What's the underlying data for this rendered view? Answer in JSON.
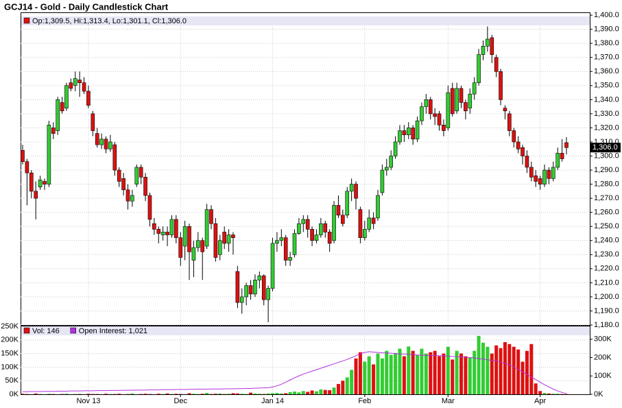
{
  "chart_data": [
    {
      "type": "candlestick",
      "title": "GCJ14 - Gold - Daily Candlestick Chart",
      "legend_label": "Op:1,309.5, Hi:1,313.4, Lo:1,301.1, Cl:1,306.0",
      "ylim": [
        1180,
        1402
      ],
      "yticks": [
        {
          "value": 1180,
          "label": "1,180.0"
        },
        {
          "value": 1190,
          "label": "1,190.0"
        },
        {
          "value": 1200,
          "label": "1,200.0"
        },
        {
          "value": 1210,
          "label": "1,210.0"
        },
        {
          "value": 1220,
          "label": "1,220.0"
        },
        {
          "value": 1230,
          "label": "1,230.0"
        },
        {
          "value": 1240,
          "label": "1,240.0"
        },
        {
          "value": 1250,
          "label": "1,250.0"
        },
        {
          "value": 1260,
          "label": "1,260.0"
        },
        {
          "value": 1270,
          "label": "1,270.0"
        },
        {
          "value": 1280,
          "label": "1,280.0"
        },
        {
          "value": 1290,
          "label": "1,290.0"
        },
        {
          "value": 1300,
          "label": "1,300.0"
        },
        {
          "value": 1310,
          "label": "1,310.0"
        },
        {
          "value": 1320,
          "label": "1,320.0"
        },
        {
          "value": 1330,
          "label": "1,330.0"
        },
        {
          "value": 1340,
          "label": "1,340.0"
        },
        {
          "value": 1350,
          "label": "1,350.0"
        },
        {
          "value": 1360,
          "label": "1,360.0"
        },
        {
          "value": 1370,
          "label": "1,370.0"
        },
        {
          "value": 1380,
          "label": "1,380.0"
        },
        {
          "value": 1390,
          "label": "1,390.0"
        },
        {
          "value": 1400,
          "label": "1,400.0"
        }
      ],
      "grid": true,
      "up_color": "#33cc33",
      "down_color": "#dd1111",
      "last_price": {
        "value": 1306.0,
        "label": "1,306.0"
      },
      "candles": [
        [
          1304,
          1308,
          1294,
          1296
        ],
        [
          1296,
          1298,
          1265,
          1288
        ],
        [
          1288,
          1290,
          1270,
          1275
        ],
        [
          1275,
          1282,
          1255,
          1270
        ],
        [
          1278,
          1286,
          1276,
          1283
        ],
        [
          1282,
          1284,
          1276,
          1280
        ],
        [
          1280,
          1325,
          1278,
          1322
        ],
        [
          1320,
          1324,
          1312,
          1316
        ],
        [
          1318,
          1342,
          1315,
          1340
        ],
        [
          1338,
          1342,
          1330,
          1332
        ],
        [
          1334,
          1352,
          1332,
          1350
        ],
        [
          1352,
          1355,
          1346,
          1348
        ],
        [
          1350,
          1360,
          1346,
          1355
        ],
        [
          1354,
          1360,
          1342,
          1352
        ],
        [
          1352,
          1356,
          1344,
          1346
        ],
        [
          1346,
          1350,
          1334,
          1336
        ],
        [
          1330,
          1332,
          1314,
          1318
        ],
        [
          1316,
          1320,
          1306,
          1308
        ],
        [
          1308,
          1316,
          1305,
          1312
        ],
        [
          1312,
          1314,
          1302,
          1305
        ],
        [
          1305,
          1315,
          1303,
          1310
        ],
        [
          1308,
          1310,
          1286,
          1290
        ],
        [
          1290,
          1292,
          1278,
          1282
        ],
        [
          1284,
          1288,
          1272,
          1276
        ],
        [
          1276,
          1280,
          1262,
          1268
        ],
        [
          1268,
          1276,
          1264,
          1272
        ],
        [
          1280,
          1294,
          1278,
          1292
        ],
        [
          1292,
          1294,
          1280,
          1285
        ],
        [
          1285,
          1288,
          1268,
          1272
        ],
        [
          1272,
          1274,
          1250,
          1255
        ],
        [
          1252,
          1256,
          1244,
          1248
        ],
        [
          1248,
          1250,
          1238,
          1245
        ],
        [
          1244,
          1250,
          1240,
          1246
        ],
        [
          1246,
          1250,
          1236,
          1244
        ],
        [
          1244,
          1258,
          1242,
          1255
        ],
        [
          1255,
          1258,
          1238,
          1242
        ],
        [
          1242,
          1246,
          1222,
          1228
        ],
        [
          1236,
          1254,
          1226,
          1250
        ],
        [
          1250,
          1252,
          1212,
          1232
        ],
        [
          1226,
          1240,
          1214,
          1235
        ],
        [
          1235,
          1246,
          1232,
          1240
        ],
        [
          1240,
          1242,
          1212,
          1232
        ],
        [
          1236,
          1266,
          1234,
          1262
        ],
        [
          1262,
          1265,
          1248,
          1252
        ],
        [
          1252,
          1256,
          1225,
          1228
        ],
        [
          1230,
          1244,
          1226,
          1240
        ],
        [
          1246,
          1250,
          1234,
          1238
        ],
        [
          1238,
          1248,
          1232,
          1244
        ],
        [
          1244,
          1246,
          1230,
          1242
        ],
        [
          1218,
          1222,
          1192,
          1196
        ],
        [
          1196,
          1206,
          1188,
          1200
        ],
        [
          1200,
          1210,
          1194,
          1208
        ],
        [
          1208,
          1212,
          1198,
          1202
        ],
        [
          1202,
          1216,
          1200,
          1212
        ],
        [
          1212,
          1218,
          1206,
          1215
        ],
        [
          1215,
          1216,
          1194,
          1198
        ],
        [
          1198,
          1208,
          1182,
          1206
        ],
        [
          1206,
          1242,
          1204,
          1238
        ],
        [
          1238,
          1246,
          1232,
          1240
        ],
        [
          1240,
          1248,
          1236,
          1242
        ],
        [
          1242,
          1244,
          1222,
          1226
        ],
        [
          1226,
          1232,
          1222,
          1228
        ],
        [
          1230,
          1248,
          1228,
          1245
        ],
        [
          1245,
          1256,
          1244,
          1252
        ],
        [
          1252,
          1258,
          1246,
          1255
        ],
        [
          1255,
          1258,
          1242,
          1248
        ],
        [
          1248,
          1250,
          1236,
          1240
        ],
        [
          1240,
          1248,
          1238,
          1244
        ],
        [
          1244,
          1256,
          1242,
          1252
        ],
        [
          1252,
          1254,
          1242,
          1246
        ],
        [
          1246,
          1248,
          1232,
          1238
        ],
        [
          1240,
          1268,
          1238,
          1265
        ],
        [
          1265,
          1272,
          1256,
          1258
        ],
        [
          1258,
          1262,
          1250,
          1252
        ],
        [
          1258,
          1278,
          1256,
          1275
        ],
        [
          1275,
          1284,
          1268,
          1280
        ],
        [
          1280,
          1282,
          1262,
          1270
        ],
        [
          1262,
          1264,
          1238,
          1242
        ],
        [
          1242,
          1254,
          1240,
          1248
        ],
        [
          1248,
          1262,
          1246,
          1256
        ],
        [
          1256,
          1260,
          1248,
          1252
        ],
        [
          1256,
          1276,
          1254,
          1272
        ],
        [
          1274,
          1294,
          1272,
          1290
        ],
        [
          1290,
          1298,
          1286,
          1292
        ],
        [
          1292,
          1304,
          1290,
          1300
        ],
        [
          1300,
          1314,
          1298,
          1310
        ],
        [
          1310,
          1322,
          1308,
          1318
        ],
        [
          1318,
          1322,
          1310,
          1315
        ],
        [
          1315,
          1324,
          1312,
          1320
        ],
        [
          1320,
          1322,
          1308,
          1312
        ],
        [
          1312,
          1328,
          1310,
          1325
        ],
        [
          1325,
          1338,
          1322,
          1335
        ],
        [
          1335,
          1344,
          1330,
          1340
        ],
        [
          1340,
          1342,
          1326,
          1330
        ],
        [
          1330,
          1334,
          1322,
          1328
        ],
        [
          1330,
          1332,
          1318,
          1322
        ],
        [
          1322,
          1326,
          1314,
          1318
        ],
        [
          1320,
          1350,
          1318,
          1345
        ],
        [
          1348,
          1352,
          1328,
          1330
        ],
        [
          1332,
          1352,
          1330,
          1348
        ],
        [
          1348,
          1350,
          1334,
          1338
        ],
        [
          1338,
          1340,
          1326,
          1332
        ],
        [
          1334,
          1348,
          1330,
          1344
        ],
        [
          1344,
          1356,
          1340,
          1352
        ],
        [
          1352,
          1376,
          1350,
          1372
        ],
        [
          1372,
          1382,
          1368,
          1378
        ],
        [
          1378,
          1392,
          1374,
          1383
        ],
        [
          1384,
          1386,
          1366,
          1372
        ],
        [
          1370,
          1372,
          1356,
          1360
        ],
        [
          1360,
          1362,
          1336,
          1340
        ],
        [
          1334,
          1336,
          1326,
          1332
        ],
        [
          1330,
          1332,
          1314,
          1318
        ],
        [
          1318,
          1320,
          1306,
          1310
        ],
        [
          1310,
          1314,
          1302,
          1305
        ],
        [
          1306,
          1308,
          1294,
          1300
        ],
        [
          1300,
          1304,
          1288,
          1292
        ],
        [
          1292,
          1296,
          1282,
          1285
        ],
        [
          1286,
          1290,
          1278,
          1282
        ],
        [
          1284,
          1286,
          1276,
          1280
        ],
        [
          1280,
          1294,
          1278,
          1290
        ],
        [
          1290,
          1292,
          1280,
          1284
        ],
        [
          1284,
          1296,
          1282,
          1292
        ],
        [
          1292,
          1306,
          1290,
          1302
        ],
        [
          1302,
          1312,
          1296,
          1298
        ],
        [
          1309.5,
          1313.4,
          1301.1,
          1306.0
        ]
      ]
    },
    {
      "type": "bar",
      "categories": [
        null,
        null,
        null,
        null,
        null,
        null,
        null,
        null,
        null,
        null,
        null,
        null,
        null,
        null,
        null,
        "Nov 13",
        null,
        null,
        null,
        null,
        null,
        null,
        null,
        null,
        null,
        null,
        null,
        null,
        null,
        null,
        null,
        null,
        null,
        null,
        null,
        null,
        "Dec",
        null,
        null,
        null,
        null,
        null,
        null,
        null,
        null,
        null,
        null,
        null,
        null,
        null,
        null,
        null,
        null,
        null,
        null,
        null,
        null,
        "Jan 14",
        null,
        null,
        null,
        null,
        null,
        null,
        null,
        null,
        null,
        null,
        null,
        null,
        null,
        null,
        null,
        null,
        null,
        null,
        null,
        null,
        "Feb",
        null,
        null,
        null,
        null,
        null,
        null,
        null,
        null,
        null,
        null,
        null,
        null,
        null,
        null,
        null,
        null,
        null,
        null,
        "Mar",
        null,
        null,
        null,
        null,
        null,
        null,
        null,
        null,
        null,
        null,
        null,
        null,
        null,
        null,
        null,
        null,
        null,
        null,
        null,
        null,
        "Apr",
        null,
        null,
        null,
        null,
        null,
        null
      ],
      "ylim": [
        0,
        250
      ],
      "yticks": [
        {
          "value": 0,
          "label": "0K"
        },
        {
          "value": 50,
          "label": "50K"
        },
        {
          "value": 100,
          "label": "100K"
        },
        {
          "value": 150,
          "label": "150K"
        },
        {
          "value": 200,
          "label": "200K"
        },
        {
          "value": 250,
          "label": "250K"
        }
      ],
      "y2lim": [
        0,
        370
      ],
      "y2ticks": [
        {
          "value": 0,
          "label": "0K"
        },
        {
          "value": 100,
          "label": "100K"
        },
        {
          "value": 200,
          "label": "200K"
        },
        {
          "value": 300,
          "label": "300K"
        }
      ],
      "grid": true,
      "series": [
        {
          "name": "Vol: 146",
          "color": "#dd1111",
          "values": [
            2,
            1,
            0,
            3,
            1,
            0,
            2,
            1,
            0,
            1,
            2,
            0,
            1,
            1,
            0,
            2,
            1,
            1,
            0,
            2,
            1,
            1,
            2,
            0,
            1,
            3,
            0,
            1,
            2,
            1,
            0,
            2,
            1,
            3,
            1,
            2,
            1,
            0,
            4,
            2,
            1,
            2,
            5,
            1,
            2,
            3,
            1,
            2,
            4,
            3,
            2,
            1,
            6,
            3,
            2,
            1,
            3,
            4,
            5,
            3,
            4,
            8,
            10,
            7,
            12,
            9,
            14,
            11,
            18,
            16,
            15,
            25,
            38,
            50,
            62,
            90,
            132,
            155,
            120,
            140,
            110,
            150,
            132,
            160,
            145,
            152,
            168,
            140,
            176,
            160,
            145,
            168,
            150,
            155,
            160,
            140,
            150,
            175,
            128,
            160,
            150,
            140,
            135,
            160,
            215,
            190,
            175,
            150,
            180,
            170,
            192,
            185,
            175,
            165,
            120,
            160,
            185,
            40,
            12,
            5,
            3,
            2,
            2,
            1,
            1
          ]
        },
        {
          "name": "Open Interest: 1,021",
          "color": "#b030e0",
          "axis": "y2",
          "values": [
            14,
            14,
            15,
            15,
            15,
            16,
            16,
            16,
            17,
            17,
            17,
            18,
            18,
            18,
            19,
            19,
            19,
            20,
            20,
            20,
            21,
            21,
            21,
            22,
            22,
            22,
            23,
            23,
            23,
            24,
            24,
            24,
            25,
            25,
            25,
            26,
            26,
            26,
            27,
            27,
            28,
            28,
            28,
            29,
            29,
            29,
            30,
            30,
            30,
            31,
            31,
            32,
            32,
            33,
            34,
            35,
            36,
            40,
            46,
            55,
            66,
            78,
            90,
            100,
            110,
            118,
            126,
            134,
            142,
            150,
            158,
            166,
            174,
            182,
            190,
            200,
            210,
            222,
            228,
            232,
            230,
            228,
            226,
            225,
            224,
            222,
            220,
            219,
            218,
            216,
            214,
            213,
            212,
            212,
            211,
            210,
            210,
            208,
            206,
            205,
            204,
            202,
            200,
            198,
            195,
            192,
            188,
            185,
            182,
            175,
            168,
            160,
            148,
            136,
            122,
            108,
            94,
            80,
            66,
            52,
            40,
            28,
            18,
            10,
            4
          ]
        }
      ]
    }
  ]
}
